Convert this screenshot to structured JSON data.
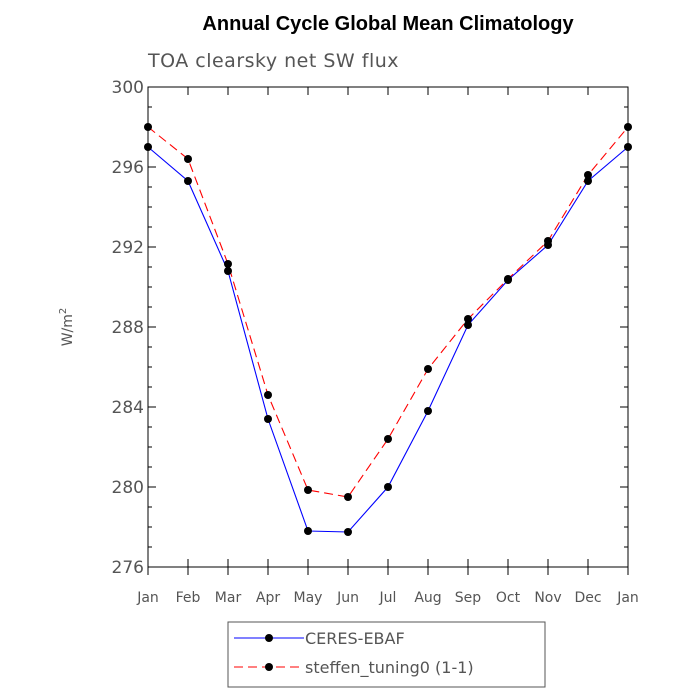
{
  "chart_data": {
    "type": "line",
    "title": "Annual Cycle Global Mean Climatology",
    "subtitle": "TOA clearsky net SW flux",
    "ylabel": "W/m",
    "ylabel_sup": "2",
    "ylim": [
      276,
      300
    ],
    "yticks": [
      276,
      280,
      284,
      288,
      292,
      296,
      300
    ],
    "categories": [
      "Jan",
      "Feb",
      "Mar",
      "Apr",
      "May",
      "Jun",
      "Jul",
      "Aug",
      "Sep",
      "Oct",
      "Nov",
      "Dec",
      "Jan"
    ],
    "series": [
      {
        "name": "CERES-EBAF",
        "color": "#0000ff",
        "dash": "solid",
        "values": [
          297.0,
          295.3,
          290.8,
          283.4,
          277.8,
          277.75,
          280.0,
          283.8,
          288.1,
          290.35,
          292.1,
          295.3,
          297.0
        ]
      },
      {
        "name": "steffen_tuning0 (1-1)",
        "color": "#ff0000",
        "dash": "dashed",
        "values": [
          298.0,
          296.4,
          291.15,
          284.6,
          279.85,
          279.5,
          282.4,
          285.9,
          288.4,
          290.4,
          292.3,
          295.6,
          298.0
        ]
      }
    ],
    "grid": false,
    "legend_position": "bottom-center"
  }
}
